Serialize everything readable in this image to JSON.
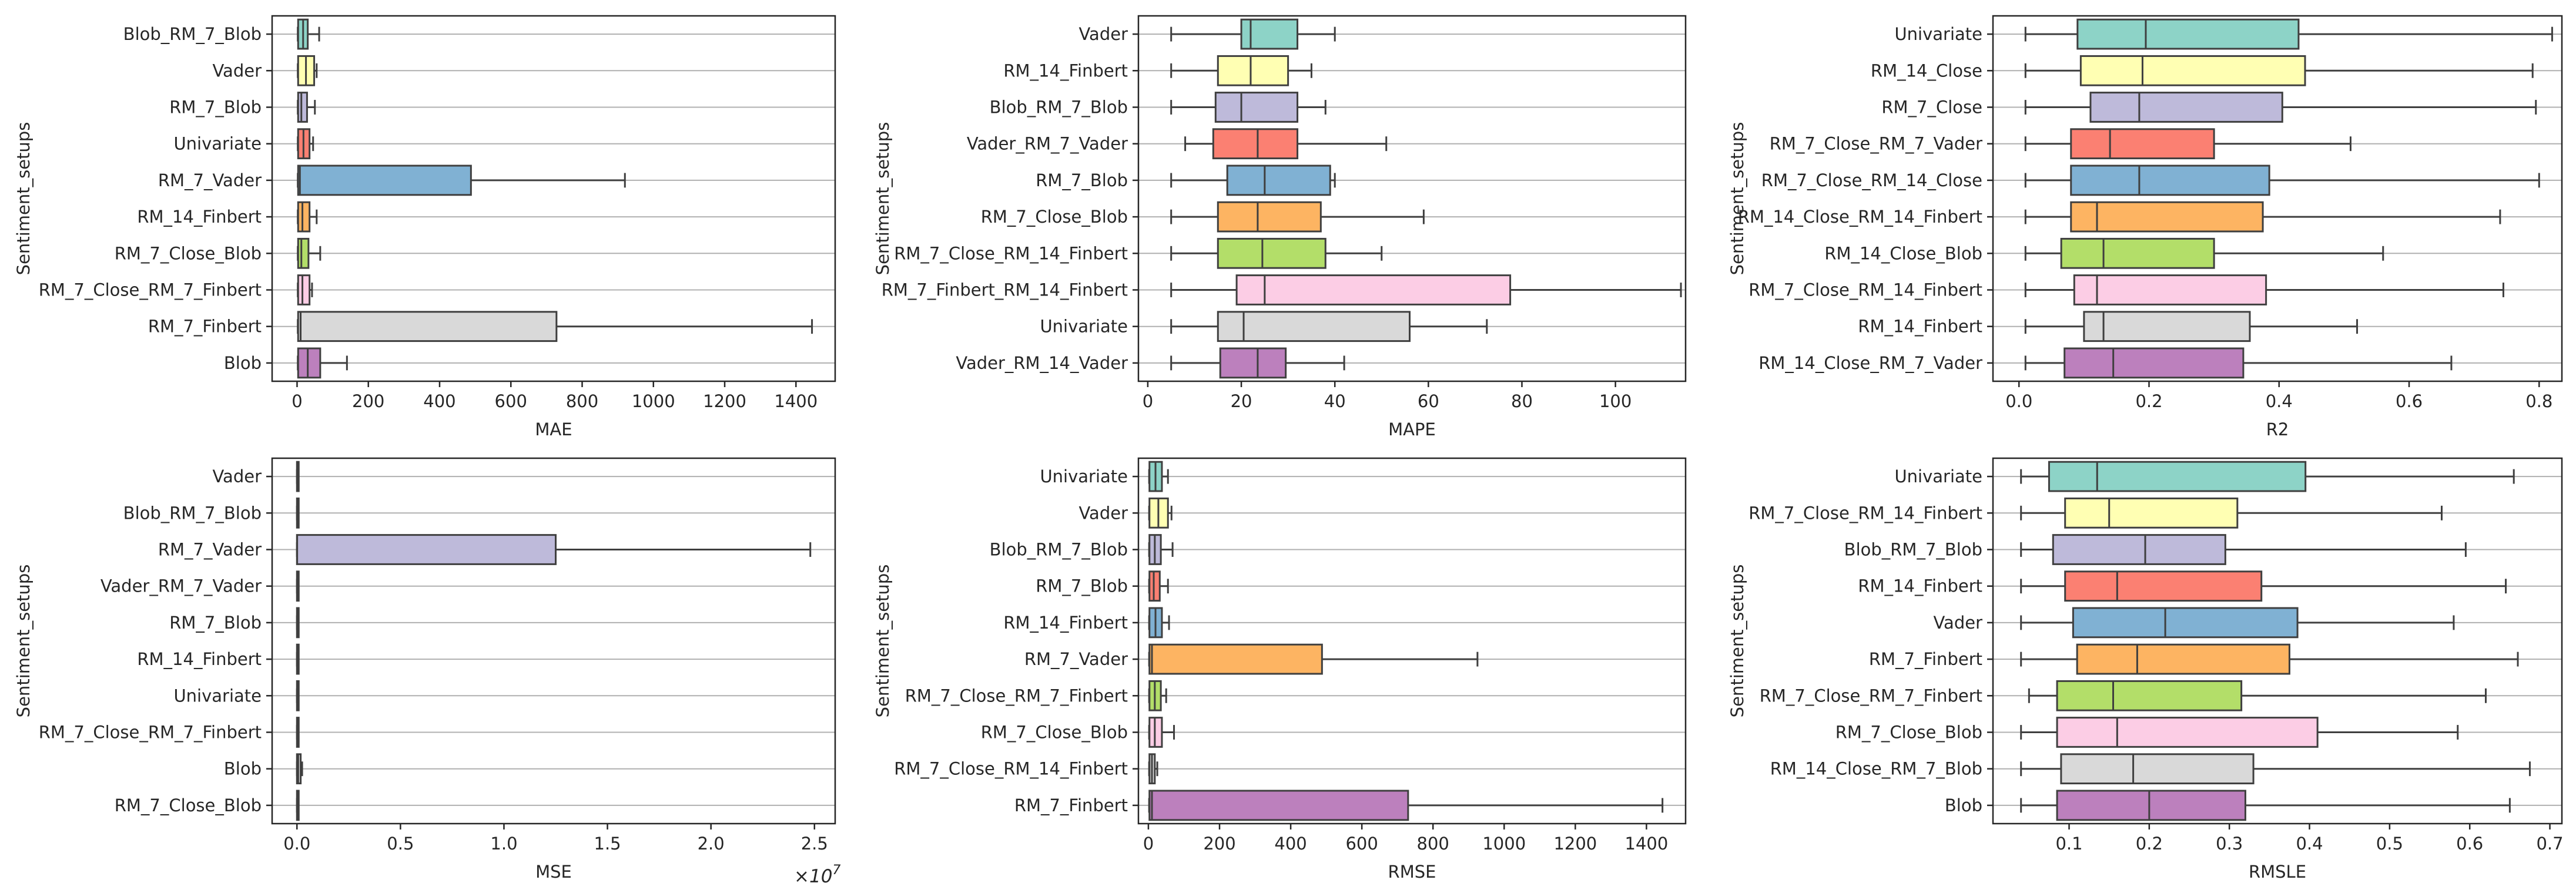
{
  "figure": {
    "background": "#ffffff",
    "title": ""
  },
  "palette": [
    "#8dd3c7",
    "#ffffb3",
    "#bebada",
    "#fb8072",
    "#80b1d3",
    "#fdb462",
    "#b3de69",
    "#fccde5",
    "#d9d9d9",
    "#bc80bd"
  ],
  "chart_data": [
    {
      "type": "boxplot-horizontal",
      "xlabel": "MAE",
      "ylabel": "Sentiment_setups",
      "xlim": [
        -70,
        1510
      ],
      "xticks": [
        0,
        200,
        400,
        600,
        800,
        1000,
        1200,
        1400
      ],
      "xtick_labels": [
        "0",
        "200",
        "400",
        "600",
        "800",
        "1000",
        "1200",
        "1400"
      ],
      "grid": "y",
      "categories": [
        "Blob_RM_7_Blob",
        "Vader",
        "RM_7_Blob",
        "Univariate",
        "RM_7_Vader",
        "RM_14_Finbert",
        "RM_7_Close_Blob",
        "RM_7_Close_RM_7_Finbert",
        "RM_7_Finbert",
        "Blob"
      ],
      "boxes": [
        {
          "min": 2,
          "q1": 3,
          "median": 17,
          "q3": 30,
          "max": 62
        },
        {
          "min": 2,
          "q1": 3,
          "median": 25,
          "q3": 48,
          "max": 55
        },
        {
          "min": 2,
          "q1": 3,
          "median": 12,
          "q3": 28,
          "max": 50
        },
        {
          "min": 2,
          "q1": 3,
          "median": 18,
          "q3": 35,
          "max": 45
        },
        {
          "min": 2,
          "q1": 3,
          "median": 8,
          "q3": 488,
          "max": 920
        },
        {
          "min": 2,
          "q1": 3,
          "median": 15,
          "q3": 35,
          "max": 55
        },
        {
          "min": 2,
          "q1": 3,
          "median": 12,
          "q3": 32,
          "max": 65
        },
        {
          "min": 2,
          "q1": 3,
          "median": 15,
          "q3": 35,
          "max": 42
        },
        {
          "min": 2,
          "q1": 3,
          "median": 10,
          "q3": 728,
          "max": 1445
        },
        {
          "min": 2,
          "q1": 3,
          "median": 30,
          "q3": 65,
          "max": 140
        }
      ]
    },
    {
      "type": "boxplot-horizontal",
      "xlabel": "MAPE",
      "ylabel": "Sentiment_setups",
      "xlim": [
        -2,
        115
      ],
      "xticks": [
        0,
        20,
        40,
        60,
        80,
        100
      ],
      "xtick_labels": [
        "0",
        "20",
        "40",
        "60",
        "80",
        "100"
      ],
      "grid": "y",
      "categories": [
        "Vader",
        "RM_14_Finbert",
        "Blob_RM_7_Blob",
        "Vader_RM_7_Vader",
        "RM_7_Blob",
        "RM_7_Close_Blob",
        "RM_7_Close_RM_14_Finbert",
        "RM_7_Finbert_RM_14_Finbert",
        "Univariate",
        "Vader_RM_14_Vader"
      ],
      "boxes": [
        {
          "min": 5,
          "q1": 20,
          "median": 22,
          "q3": 32,
          "max": 40
        },
        {
          "min": 5,
          "q1": 15,
          "median": 22,
          "q3": 30,
          "max": 35
        },
        {
          "min": 5,
          "q1": 14.5,
          "median": 20,
          "q3": 32,
          "max": 38
        },
        {
          "min": 8,
          "q1": 14,
          "median": 23.5,
          "q3": 32,
          "max": 51
        },
        {
          "min": 5,
          "q1": 17,
          "median": 25,
          "q3": 39,
          "max": 40
        },
        {
          "min": 5,
          "q1": 15,
          "median": 23.5,
          "q3": 37,
          "max": 59
        },
        {
          "min": 5,
          "q1": 15,
          "median": 24.5,
          "q3": 38,
          "max": 50
        },
        {
          "min": 5,
          "q1": 19,
          "median": 25,
          "q3": 77.5,
          "max": 114
        },
        {
          "min": 5,
          "q1": 15,
          "median": 20.5,
          "q3": 56,
          "max": 72.5
        },
        {
          "min": 5,
          "q1": 15.5,
          "median": 23.5,
          "q3": 29.5,
          "max": 42
        }
      ]
    },
    {
      "type": "boxplot-horizontal",
      "xlabel": "R2",
      "ylabel": "Sentiment_setups",
      "xlim": [
        -0.04,
        0.835
      ],
      "xticks": [
        0.0,
        0.2,
        0.4,
        0.6,
        0.8
      ],
      "xtick_labels": [
        "0.0",
        "0.2",
        "0.4",
        "0.6",
        "0.8"
      ],
      "grid": "y",
      "categories": [
        "Univariate",
        "RM_14_Close",
        "RM_7_Close",
        "RM_7_Close_RM_7_Vader",
        "RM_7_Close_RM_14_Close",
        "RM_14_Close_RM_14_Finbert",
        "RM_14_Close_Blob",
        "RM_7_Close_RM_14_Finbert",
        "RM_14_Finbert",
        "RM_14_Close_RM_7_Vader"
      ],
      "boxes": [
        {
          "min": 0.01,
          "q1": 0.09,
          "median": 0.195,
          "q3": 0.43,
          "max": 0.82
        },
        {
          "min": 0.01,
          "q1": 0.095,
          "median": 0.19,
          "q3": 0.44,
          "max": 0.79
        },
        {
          "min": 0.01,
          "q1": 0.11,
          "median": 0.185,
          "q3": 0.405,
          "max": 0.795
        },
        {
          "min": 0.01,
          "q1": 0.08,
          "median": 0.14,
          "q3": 0.3,
          "max": 0.51
        },
        {
          "min": 0.01,
          "q1": 0.08,
          "median": 0.185,
          "q3": 0.385,
          "max": 0.8
        },
        {
          "min": 0.01,
          "q1": 0.08,
          "median": 0.12,
          "q3": 0.375,
          "max": 0.74
        },
        {
          "min": 0.01,
          "q1": 0.065,
          "median": 0.13,
          "q3": 0.3,
          "max": 0.56
        },
        {
          "min": 0.01,
          "q1": 0.085,
          "median": 0.12,
          "q3": 0.38,
          "max": 0.745
        },
        {
          "min": 0.01,
          "q1": 0.1,
          "median": 0.13,
          "q3": 0.355,
          "max": 0.52
        },
        {
          "min": 0.01,
          "q1": 0.07,
          "median": 0.145,
          "q3": 0.345,
          "max": 0.665
        }
      ]
    },
    {
      "type": "boxplot-horizontal",
      "xlabel": "MSE",
      "ylabel": "Sentiment_setups",
      "axis_multiplier": "x10^7",
      "xlim": [
        -0.12,
        2.6
      ],
      "xticks": [
        0.0,
        0.5,
        1.0,
        1.5,
        2.0,
        2.5
      ],
      "xtick_labels": [
        "0.0",
        "0.5",
        "1.0",
        "1.5",
        "2.0",
        "2.5"
      ],
      "grid": "y",
      "categories": [
        "Vader",
        "Blob_RM_7_Blob",
        "RM_7_Vader",
        "Vader_RM_7_Vader",
        "RM_7_Blob",
        "RM_14_Finbert",
        "Univariate",
        "RM_7_Close_RM_7_Finbert",
        "Blob",
        "RM_7_Close_Blob"
      ],
      "boxes": [
        {
          "min": 0,
          "q1": 0,
          "median": 0.001,
          "q3": 0.003,
          "max": 0.004
        },
        {
          "min": 0,
          "q1": 0,
          "median": 0.001,
          "q3": 0.002,
          "max": 0.003
        },
        {
          "min": 0,
          "q1": 0,
          "median": 0.001,
          "q3": 1.25,
          "max": 2.48
        },
        {
          "min": 0,
          "q1": 0,
          "median": 0.001,
          "q3": 0.002,
          "max": 0.003
        },
        {
          "min": 0,
          "q1": 0,
          "median": 0.001,
          "q3": 0.002,
          "max": 0.003
        },
        {
          "min": 0,
          "q1": 0,
          "median": 0.001,
          "q3": 0.002,
          "max": 0.003
        },
        {
          "min": 0,
          "q1": 0,
          "median": 0.001,
          "q3": 0.002,
          "max": 0.003
        },
        {
          "min": 0,
          "q1": 0,
          "median": 0.001,
          "q3": 0.002,
          "max": 0.003
        },
        {
          "min": 0,
          "q1": 0,
          "median": 0.006,
          "q3": 0.018,
          "max": 0.025
        },
        {
          "min": 0,
          "q1": 0,
          "median": 0.001,
          "q3": 0.002,
          "max": 0.003
        }
      ]
    },
    {
      "type": "boxplot-horizontal",
      "xlabel": "RMSE",
      "ylabel": "Sentiment_setups",
      "xlim": [
        -28,
        1510
      ],
      "xticks": [
        0,
        200,
        400,
        600,
        800,
        1000,
        1200,
        1400
      ],
      "xtick_labels": [
        "0",
        "200",
        "400",
        "600",
        "800",
        "1000",
        "1200",
        "1400"
      ],
      "grid": "y",
      "categories": [
        "Univariate",
        "Vader",
        "Blob_RM_7_Blob",
        "RM_7_Blob",
        "RM_14_Finbert",
        "RM_7_Vader",
        "RM_7_Close_RM_7_Finbert",
        "RM_7_Close_Blob",
        "RM_7_Close_RM_14_Finbert",
        "RM_7_Finbert"
      ],
      "boxes": [
        {
          "min": 2,
          "q1": 3,
          "median": 20,
          "q3": 38,
          "max": 55
        },
        {
          "min": 2,
          "q1": 3,
          "median": 28,
          "q3": 55,
          "max": 65
        },
        {
          "min": 2,
          "q1": 3,
          "median": 18,
          "q3": 35,
          "max": 68
        },
        {
          "min": 2,
          "q1": 3,
          "median": 15,
          "q3": 32,
          "max": 55
        },
        {
          "min": 2,
          "q1": 3,
          "median": 20,
          "q3": 38,
          "max": 58
        },
        {
          "min": 2,
          "q1": 3,
          "median": 10,
          "q3": 488,
          "max": 925
        },
        {
          "min": 2,
          "q1": 3,
          "median": 18,
          "q3": 35,
          "max": 50
        },
        {
          "min": 2,
          "q1": 3,
          "median": 18,
          "q3": 38,
          "max": 72
        },
        {
          "min": 2,
          "q1": 3,
          "median": 10,
          "q3": 18,
          "max": 25
        },
        {
          "min": 2,
          "q1": 3,
          "median": 10,
          "q3": 730,
          "max": 1445
        }
      ]
    },
    {
      "type": "boxplot-horizontal",
      "xlabel": "RMSLE",
      "ylabel": "Sentiment_setups",
      "xlim": [
        0.005,
        0.715
      ],
      "xticks": [
        0.1,
        0.2,
        0.3,
        0.4,
        0.5,
        0.6,
        0.7
      ],
      "xtick_labels": [
        "0.1",
        "0.2",
        "0.3",
        "0.4",
        "0.5",
        "0.6",
        "0.7"
      ],
      "grid": "y",
      "categories": [
        "Univariate",
        "RM_7_Close_RM_14_Finbert",
        "Blob_RM_7_Blob",
        "RM_14_Finbert",
        "Vader",
        "RM_7_Finbert",
        "RM_7_Close_RM_7_Finbert",
        "RM_7_Close_Blob",
        "RM_14_Close_RM_7_Blob",
        "Blob"
      ],
      "boxes": [
        {
          "min": 0.04,
          "q1": 0.075,
          "median": 0.135,
          "q3": 0.395,
          "max": 0.655
        },
        {
          "min": 0.04,
          "q1": 0.095,
          "median": 0.15,
          "q3": 0.31,
          "max": 0.565
        },
        {
          "min": 0.04,
          "q1": 0.08,
          "median": 0.195,
          "q3": 0.295,
          "max": 0.595
        },
        {
          "min": 0.04,
          "q1": 0.095,
          "median": 0.16,
          "q3": 0.34,
          "max": 0.645
        },
        {
          "min": 0.04,
          "q1": 0.105,
          "median": 0.22,
          "q3": 0.385,
          "max": 0.58
        },
        {
          "min": 0.04,
          "q1": 0.11,
          "median": 0.185,
          "q3": 0.375,
          "max": 0.66
        },
        {
          "min": 0.05,
          "q1": 0.085,
          "median": 0.155,
          "q3": 0.315,
          "max": 0.62
        },
        {
          "min": 0.04,
          "q1": 0.085,
          "median": 0.16,
          "q3": 0.41,
          "max": 0.585
        },
        {
          "min": 0.04,
          "q1": 0.09,
          "median": 0.18,
          "q3": 0.33,
          "max": 0.675
        },
        {
          "min": 0.04,
          "q1": 0.085,
          "median": 0.2,
          "q3": 0.32,
          "max": 0.65
        }
      ]
    }
  ]
}
